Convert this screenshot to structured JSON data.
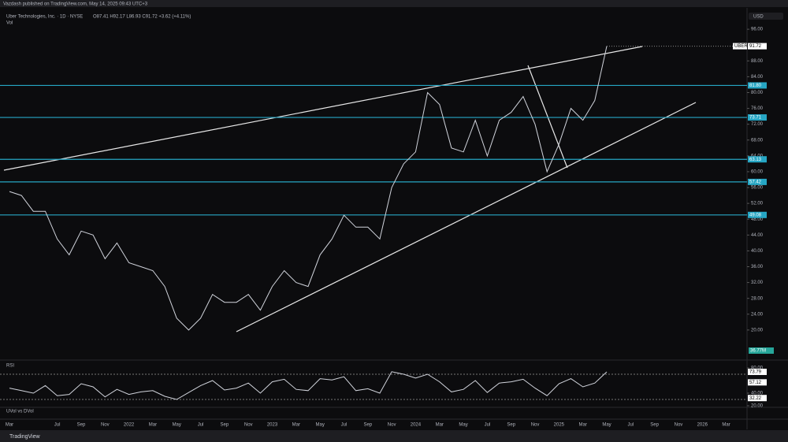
{
  "header": "Vazdash published on TradingView.com, May 14, 2025 09:43 UTC+3",
  "currency": "USD",
  "vol_label": "Vol",
  "volume_value": "36.77M",
  "indicator": "UVol vs DVol",
  "footer": "TradingView",
  "chart_data": [
    {
      "type": "line",
      "title": "Uber Technologies, Inc. · 1D · NYSE",
      "subtitle": "O87.41 H92.17 L86.93 C91.72 +3.62 (+4.11%)",
      "categories": [
        "Mar",
        null,
        null,
        null,
        "Jul",
        null,
        "Sep",
        null,
        "Nov",
        null,
        "2022",
        null,
        "Mar",
        null,
        "May",
        null,
        "Jul",
        null,
        "Sep",
        null,
        "Nov",
        null,
        "2023",
        null,
        "Mar",
        null,
        "May",
        null,
        "Jul",
        null,
        "Sep",
        null,
        "Nov",
        null,
        "2024",
        null,
        "Mar",
        null,
        "May",
        null,
        "Jul",
        null,
        "Sep",
        null,
        "Nov",
        null,
        "2025",
        null,
        "Mar",
        null,
        "May",
        null,
        "Jul",
        null,
        "Sep",
        null,
        "Nov",
        null,
        "2026",
        null,
        "Mar"
      ],
      "series": [
        {
          "name": "UBER",
          "color": "#d1d4dc",
          "values": [
            55,
            54,
            50,
            50,
            43,
            39,
            45,
            44,
            38,
            42,
            37,
            36,
            35,
            31,
            23,
            20,
            23,
            29,
            27,
            27,
            29,
            25,
            31,
            35,
            32,
            31,
            39,
            43,
            49,
            46,
            46,
            43,
            56,
            62,
            65,
            80,
            77,
            66,
            65,
            73,
            64,
            73,
            75,
            79,
            72,
            60,
            67,
            76,
            73,
            78,
            91.72,
            null,
            null,
            null,
            null,
            null,
            null,
            null,
            null,
            null,
            null
          ],
          "value_labels": [
            null,
            null,
            null,
            null,
            null,
            null,
            null,
            null,
            null,
            null,
            null,
            null,
            null,
            null,
            null,
            null,
            null,
            null,
            null,
            null,
            null,
            null,
            null,
            null,
            null,
            null,
            null,
            null,
            null,
            null,
            null,
            null,
            null,
            null,
            null,
            null,
            null,
            null,
            null,
            null,
            null,
            null,
            null,
            null,
            null,
            null,
            null,
            null,
            null,
            null,
            "91.72",
            null,
            null,
            null,
            null,
            null,
            null,
            null,
            null,
            null,
            null
          ]
        }
      ],
      "ylim": [
        14,
        101
      ],
      "yticks": [
        {
          "value": 96,
          "label": "96.00"
        },
        {
          "value": 88,
          "label": "88.00"
        },
        {
          "value": 84,
          "label": "84.00"
        },
        {
          "value": 80,
          "label": "80.00"
        },
        {
          "value": 76,
          "label": "76.00"
        },
        {
          "value": 72,
          "label": "72.00"
        },
        {
          "value": 68,
          "label": "68.00"
        },
        {
          "value": 64,
          "label": "64.00"
        },
        {
          "value": 60,
          "label": "60.00"
        },
        {
          "value": 56,
          "label": "56.00"
        },
        {
          "value": 52,
          "label": "52.00"
        },
        {
          "value": 48,
          "label": "48.00"
        },
        {
          "value": 44,
          "label": "44.00"
        },
        {
          "value": 40,
          "label": "40.00"
        },
        {
          "value": 36,
          "label": "36.00"
        },
        {
          "value": 32,
          "label": "32.00"
        },
        {
          "value": 28,
          "label": "28.00"
        },
        {
          "value": 24,
          "label": "24.00"
        },
        {
          "value": 20,
          "label": "20.00"
        }
      ],
      "levels": [
        {
          "value": 81.8,
          "label": "81.80"
        },
        {
          "value": 73.71,
          "label": "73.71"
        },
        {
          "value": 63.13,
          "label": "63.13"
        },
        {
          "value": 57.42,
          "label": "57.42"
        },
        {
          "value": 49.08,
          "label": "49.08"
        }
      ],
      "level_color": "#26a6c4",
      "grid": false
    },
    {
      "type": "line",
      "title": "RSI",
      "series": [
        {
          "name": "RSI",
          "color": "#d1d4dc",
          "values": [
            48,
            44,
            40,
            52,
            36,
            38,
            55,
            50,
            34,
            46,
            38,
            42,
            44,
            35,
            30,
            41,
            52,
            60,
            45,
            48,
            56,
            40,
            58,
            62,
            46,
            44,
            63,
            61,
            66,
            44,
            47,
            40,
            74,
            70,
            64,
            70,
            58,
            42,
            46,
            60,
            41,
            56,
            58,
            62,
            48,
            36,
            55,
            63,
            50,
            56,
            73.79
          ]
        }
      ],
      "ylim": [
        15,
        85
      ],
      "yticks": [
        {
          "value": 80,
          "label": "80.00"
        },
        {
          "value": 40,
          "label": "40.00"
        },
        {
          "value": 20,
          "label": "20.00"
        }
      ],
      "bands": [
        70,
        30
      ],
      "tags": [
        {
          "value": 73.79,
          "label": "73.79"
        },
        {
          "value": 57.12,
          "label": "57.12"
        },
        {
          "value": 32.22,
          "label": "32.22"
        }
      ]
    }
  ]
}
